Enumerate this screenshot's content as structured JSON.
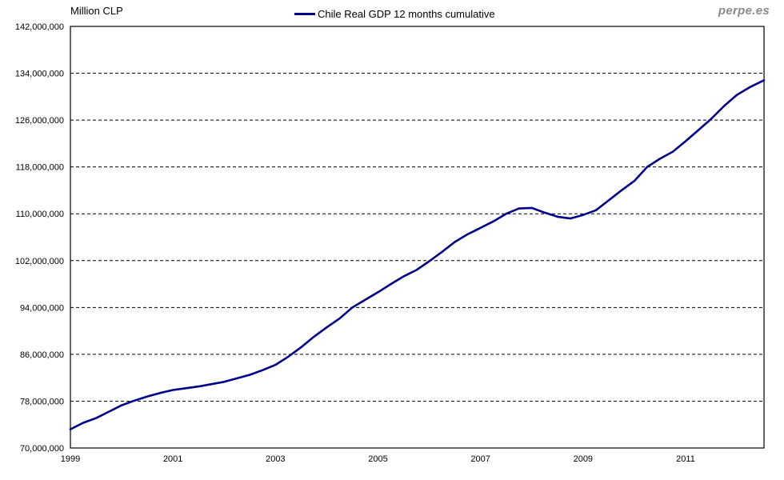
{
  "header": {
    "unit_label": "Million CLP",
    "watermark": "perpe.es"
  },
  "legend": {
    "label": "Chile Real GDP 12 months cumulative"
  },
  "colors": {
    "series_line": "#00008B",
    "plot_border": "#000000",
    "gridline": "#000000",
    "tick_text": "#000000",
    "watermark_text": "#8a8a8a",
    "background": "#ffffff"
  },
  "chart_data": {
    "type": "line",
    "title": "",
    "xlabel": "",
    "ylabel": "Million CLP",
    "legend_position": "top-center",
    "grid": "horizontal-dashed",
    "ylim": [
      70000000,
      142000000
    ],
    "ytick_step": 8000000,
    "yticks": [
      70000000,
      78000000,
      86000000,
      94000000,
      102000000,
      110000000,
      118000000,
      126000000,
      134000000,
      142000000
    ],
    "xticks": [
      1999,
      2001,
      2003,
      2005,
      2007,
      2009,
      2011
    ],
    "xlim": [
      1999,
      2012.53
    ],
    "series": [
      {
        "name": "Chile Real GDP 12 months cumulative",
        "color": "#00008B",
        "x": [
          1999,
          1999.25,
          1999.5,
          1999.75,
          2000,
          2000.25,
          2000.5,
          2000.75,
          2001,
          2001.25,
          2001.5,
          2001.75,
          2002,
          2002.25,
          2002.5,
          2002.75,
          2003,
          2003.25,
          2003.5,
          2003.75,
          2004,
          2004.25,
          2004.5,
          2004.75,
          2005,
          2005.25,
          2005.5,
          2005.75,
          2006,
          2006.25,
          2006.5,
          2006.75,
          2007,
          2007.25,
          2007.5,
          2007.75,
          2008,
          2008.25,
          2008.5,
          2008.75,
          2009,
          2009.25,
          2009.5,
          2009.75,
          2010,
          2010.25,
          2010.5,
          2010.75,
          2011,
          2011.25,
          2011.5,
          2011.75,
          2012,
          2012.25,
          2012.53
        ],
        "values": [
          73200000,
          74300000,
          75100000,
          76200000,
          77300000,
          78100000,
          78800000,
          79400000,
          79900000,
          80200000,
          80500000,
          80900000,
          81300000,
          81900000,
          82500000,
          83300000,
          84200000,
          85600000,
          87200000,
          89000000,
          90600000,
          92100000,
          94000000,
          95300000,
          96600000,
          98000000,
          99300000,
          100400000,
          101900000,
          103500000,
          105200000,
          106500000,
          107600000,
          108700000,
          110000000,
          110900000,
          111000000,
          110200000,
          109500000,
          109200000,
          109800000,
          110600000,
          112300000,
          114000000,
          115600000,
          118000000,
          119400000,
          120600000,
          122400000,
          124300000,
          126200000,
          128400000,
          130300000,
          131600000,
          132800000
        ]
      }
    ]
  }
}
